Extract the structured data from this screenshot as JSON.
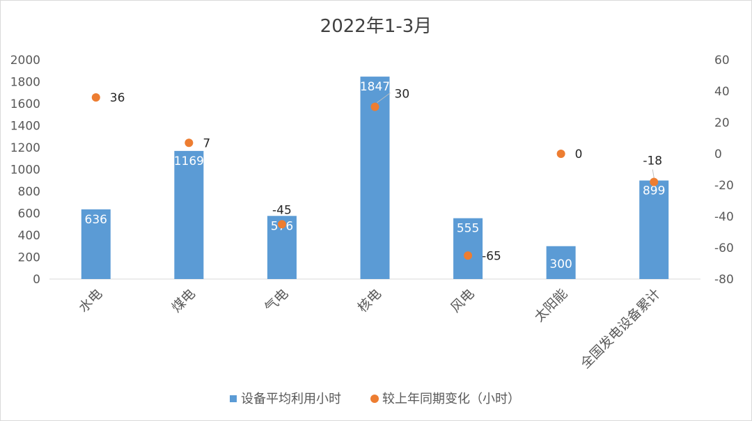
{
  "chart_data": {
    "type": "bar",
    "title": "2022年1-3月",
    "categories": [
      "水电",
      "煤电",
      "气电",
      "核电",
      "风电",
      "太阳能",
      "全国发电设备累计"
    ],
    "series": [
      {
        "name": "设备平均利用小时",
        "chart_type": "bar",
        "axis": "left",
        "color": "#5b9bd5",
        "values": [
          636,
          1169,
          576,
          1847,
          555,
          300,
          899
        ]
      },
      {
        "name": "较上年同期变化（小时）",
        "chart_type": "scatter",
        "axis": "right",
        "color": "#ed7d31",
        "values": [
          36,
          7,
          -45,
          30,
          -65,
          0,
          -18
        ]
      }
    ],
    "y_left": {
      "ylim": [
        0,
        2000
      ],
      "ticks": [
        "0",
        "200",
        "400",
        "600",
        "800",
        "1000",
        "1200",
        "1400",
        "1600",
        "1800",
        "2000"
      ]
    },
    "y_right": {
      "ylim": [
        -80,
        60
      ],
      "ticks": [
        "-80",
        "-60",
        "-40",
        "-20",
        "0",
        "20",
        "40",
        "60"
      ]
    },
    "grid": false,
    "legend_position": "bottom"
  }
}
